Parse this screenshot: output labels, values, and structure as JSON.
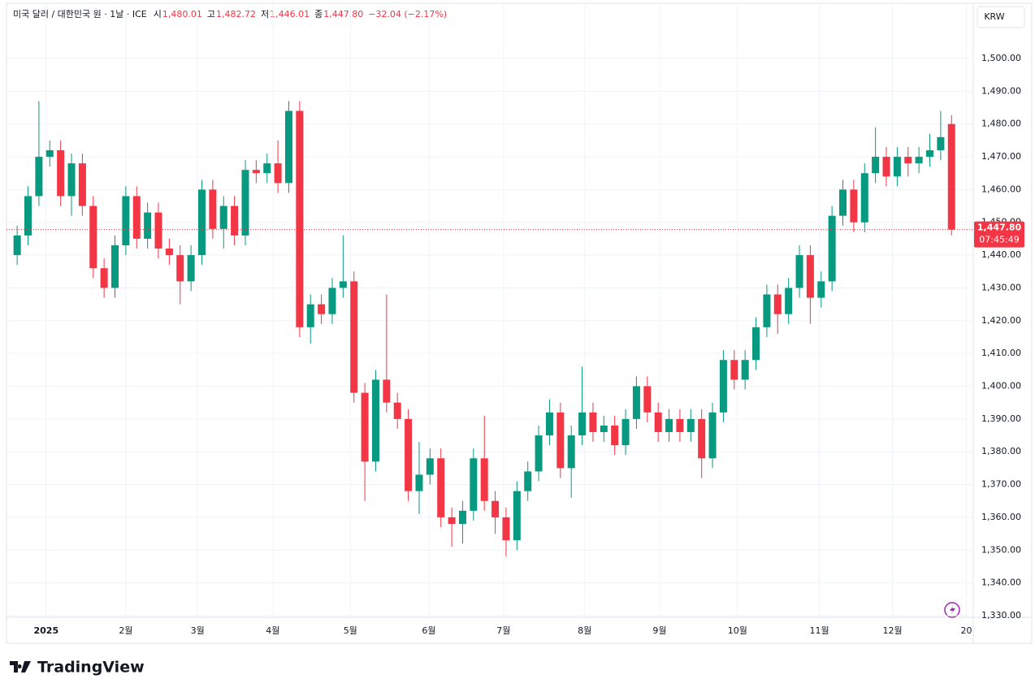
{
  "header": {
    "symbol": "미국 달러 / 대한민국 원 · 1날 · ICE",
    "ohlc": [
      {
        "label": "시",
        "value": "1,480.01"
      },
      {
        "label": "고",
        "value": "1,482.72"
      },
      {
        "label": "저",
        "value": "1,446.01"
      },
      {
        "label": "종",
        "value": "1,447.80"
      }
    ],
    "change": "−32.04 (−2.17%)"
  },
  "brand": "TradingView",
  "chart_data": {
    "type": "candlestick",
    "currency": "KRW",
    "last_price_label": "1,447.80",
    "countdown": "07:45:49",
    "up_color": "#089981",
    "down_color": "#f23645",
    "x": [
      2,
      5,
      8,
      11,
      14,
      17,
      20,
      23,
      26,
      29,
      32,
      35,
      38,
      41,
      44,
      47,
      50,
      53,
      56,
      59,
      62,
      65,
      68,
      71,
      74,
      77,
      80,
      83,
      86,
      89,
      92,
      95,
      98,
      101,
      104,
      107,
      110,
      113,
      116,
      119,
      122,
      125,
      128,
      131,
      134,
      137,
      140,
      143,
      146,
      149,
      152,
      155,
      158,
      161,
      164,
      167,
      170,
      173,
      176,
      179,
      182,
      185,
      188,
      191,
      194,
      197,
      200,
      203,
      206,
      209,
      212,
      215,
      218,
      221,
      224,
      227,
      230,
      233,
      236,
      239,
      242,
      245,
      248,
      251,
      254,
      257,
      260
    ],
    "open": [
      1440,
      1446,
      1458,
      1470,
      1472,
      1458,
      1468,
      1455,
      1436,
      1430,
      1443,
      1458,
      1445,
      1453,
      1442,
      1440,
      1432,
      1440,
      1460,
      1448,
      1455,
      1446,
      1466,
      1465,
      1468,
      1462,
      1484,
      1418,
      1425,
      1422,
      1430,
      1432,
      1398,
      1377,
      1402,
      1395,
      1390,
      1368,
      1373,
      1378,
      1360,
      1358,
      1362,
      1378,
      1365,
      1360,
      1353,
      1368,
      1374,
      1385,
      1392,
      1375,
      1385,
      1392,
      1386,
      1388,
      1382,
      1390,
      1400,
      1392,
      1386,
      1390,
      1386,
      1390,
      1378,
      1392,
      1408,
      1402,
      1408,
      1418,
      1428,
      1422,
      1430,
      1440,
      1427,
      1432,
      1452,
      1460,
      1450,
      1465,
      1470,
      1464,
      1470,
      1468,
      1470,
      1472,
      1480.01
    ],
    "high": [
      1449,
      1461,
      1487,
      1475,
      1475,
      1471,
      1471,
      1458,
      1439,
      1446,
      1461,
      1461,
      1456,
      1456,
      1445,
      1443,
      1443,
      1463,
      1463,
      1458,
      1458,
      1469,
      1469,
      1471,
      1475,
      1487,
      1487,
      1428,
      1428,
      1433,
      1446,
      1435,
      1401,
      1405,
      1428,
      1398,
      1393,
      1383,
      1381,
      1381,
      1363,
      1365,
      1381,
      1391,
      1368,
      1363,
      1371,
      1377,
      1388,
      1396,
      1395,
      1388,
      1406,
      1395,
      1391,
      1391,
      1393,
      1403,
      1403,
      1395,
      1393,
      1393,
      1393,
      1393,
      1395,
      1411,
      1411,
      1411,
      1421,
      1431,
      1431,
      1433,
      1443,
      1443,
      1435,
      1455,
      1463,
      1463,
      1468,
      1479,
      1473,
      1473,
      1473,
      1473,
      1477,
      1484,
      1482.72
    ],
    "low": [
      1437,
      1443,
      1455,
      1467,
      1455,
      1452,
      1452,
      1433,
      1427,
      1427,
      1440,
      1442,
      1442,
      1439,
      1437,
      1425,
      1429,
      1437,
      1445,
      1442,
      1443,
      1443,
      1462,
      1462,
      1459,
      1459,
      1415,
      1413,
      1419,
      1419,
      1427,
      1395,
      1365,
      1374,
      1392,
      1387,
      1365,
      1361,
      1370,
      1357,
      1351,
      1352,
      1359,
      1362,
      1355,
      1348,
      1350,
      1365,
      1371,
      1382,
      1372,
      1366,
      1382,
      1383,
      1383,
      1379,
      1379,
      1387,
      1389,
      1383,
      1383,
      1383,
      1383,
      1372,
      1375,
      1389,
      1399,
      1399,
      1405,
      1415,
      1416,
      1419,
      1427,
      1419,
      1424,
      1429,
      1449,
      1447,
      1447,
      1462,
      1461,
      1461,
      1464,
      1465,
      1467,
      1469,
      1446.01
    ],
    "close": [
      1446,
      1458,
      1470,
      1472,
      1458,
      1468,
      1455,
      1436,
      1430,
      1443,
      1458,
      1445,
      1453,
      1442,
      1440,
      1432,
      1440,
      1460,
      1448,
      1455,
      1446,
      1466,
      1465,
      1468,
      1462,
      1484,
      1418,
      1425,
      1422,
      1430,
      1432,
      1398,
      1377,
      1402,
      1395,
      1390,
      1368,
      1373,
      1378,
      1360,
      1358,
      1362,
      1378,
      1365,
      1360,
      1353,
      1368,
      1374,
      1385,
      1392,
      1375,
      1385,
      1392,
      1386,
      1388,
      1382,
      1390,
      1400,
      1392,
      1386,
      1390,
      1386,
      1390,
      1378,
      1392,
      1408,
      1402,
      1408,
      1418,
      1428,
      1422,
      1430,
      1440,
      1427,
      1432,
      1452,
      1460,
      1450,
      1465,
      1470,
      1464,
      1470,
      1468,
      1470,
      1472,
      1476,
      1447.8
    ],
    "xlim": [
      -0.5,
      266
    ],
    "xticks": [
      {
        "value": 10,
        "label": "2025"
      },
      {
        "value": 32,
        "label": "2월"
      },
      {
        "value": 51.8,
        "label": "3월"
      },
      {
        "value": 72.6,
        "label": "4월"
      },
      {
        "value": 94,
        "label": "5월"
      },
      {
        "value": 115.7,
        "label": "6월"
      },
      {
        "value": 136.3,
        "label": "7월"
      },
      {
        "value": 158.7,
        "label": "8월"
      },
      {
        "value": 179.4,
        "label": "9월"
      },
      {
        "value": 200.9,
        "label": "10월"
      },
      {
        "value": 223.5,
        "label": "11월"
      },
      {
        "value": 243.7,
        "label": "12월"
      },
      {
        "value": 264.1,
        "label": "20"
      }
    ],
    "ylim": [
      1329.5,
      1516.6
    ],
    "yticks": [
      {
        "value": 1330,
        "label": "1,330.00"
      },
      {
        "value": 1340,
        "label": "1,340.00"
      },
      {
        "value": 1350,
        "label": "1,350.00"
      },
      {
        "value": 1360,
        "label": "1,360.00"
      },
      {
        "value": 1370,
        "label": "1,370.00"
      },
      {
        "value": 1380,
        "label": "1,380.00"
      },
      {
        "value": 1390,
        "label": "1,390.00"
      },
      {
        "value": 1400,
        "label": "1,400.00"
      },
      {
        "value": 1410,
        "label": "1,410.00"
      },
      {
        "value": 1420,
        "label": "1,420.00"
      },
      {
        "value": 1430,
        "label": "1,430.00"
      },
      {
        "value": 1440,
        "label": "1,440.00"
      },
      {
        "value": 1450,
        "label": "1,450.00"
      },
      {
        "value": 1460,
        "label": "1,460.00"
      },
      {
        "value": 1470,
        "label": "1,470.00"
      },
      {
        "value": 1480,
        "label": "1,480.00"
      },
      {
        "value": 1490,
        "label": "1,490.00"
      },
      {
        "value": 1500,
        "label": "1,500.00"
      }
    ],
    "grid": true
  }
}
